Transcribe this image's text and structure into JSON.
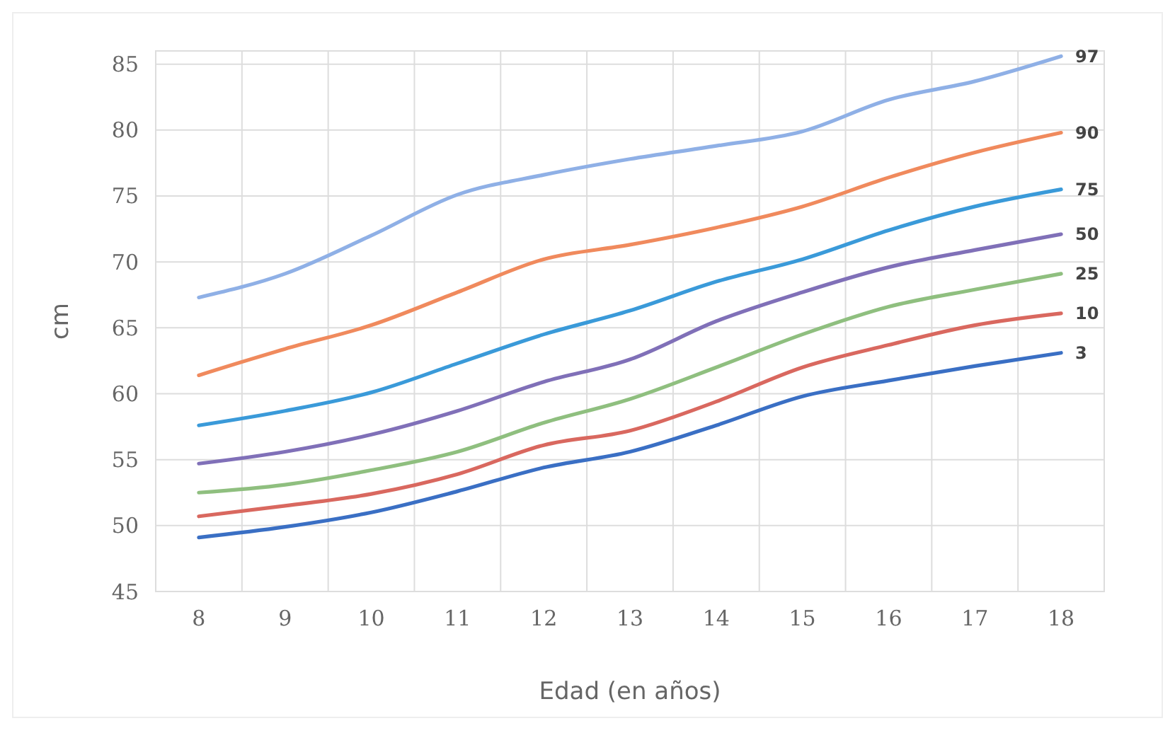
{
  "chart_data": {
    "type": "line",
    "xlabel": "Edad (en años)",
    "ylabel": "cm",
    "categories": [
      "8",
      "9",
      "10",
      "11",
      "12",
      "13",
      "14",
      "15",
      "16",
      "17",
      "18"
    ],
    "ylim": [
      45,
      86
    ],
    "yticks": [
      45,
      50,
      55,
      60,
      65,
      70,
      75,
      80,
      85
    ],
    "grid": true,
    "marker": "none",
    "line_style": "solid",
    "series": [
      {
        "name": "97",
        "color": "#8fb0e6",
        "values": [
          67.3,
          69.1,
          72.0,
          75.1,
          76.6,
          77.8,
          78.8,
          79.9,
          82.3,
          83.7,
          85.6
        ]
      },
      {
        "name": "90",
        "color": "#f08a5d",
        "values": [
          61.4,
          63.4,
          65.2,
          67.7,
          70.2,
          71.3,
          72.6,
          74.2,
          76.4,
          78.3,
          79.8
        ]
      },
      {
        "name": "75",
        "color": "#3a9ad9",
        "values": [
          57.6,
          58.7,
          60.1,
          62.3,
          64.5,
          66.3,
          68.5,
          70.2,
          72.4,
          74.2,
          75.5
        ]
      },
      {
        "name": "50",
        "color": "#8070b8",
        "values": [
          54.7,
          55.6,
          56.9,
          58.7,
          60.9,
          62.6,
          65.5,
          67.7,
          69.6,
          70.9,
          72.1
        ]
      },
      {
        "name": "25",
        "color": "#8fbf7f",
        "values": [
          52.5,
          53.1,
          54.2,
          55.6,
          57.8,
          59.6,
          62.0,
          64.5,
          66.6,
          67.9,
          69.1
        ]
      },
      {
        "name": "10",
        "color": "#d9685f",
        "values": [
          50.7,
          51.5,
          52.4,
          53.9,
          56.1,
          57.2,
          59.4,
          62.0,
          63.7,
          65.2,
          66.1
        ]
      },
      {
        "name": "3",
        "color": "#3a6fc4",
        "values": [
          49.1,
          49.9,
          51.0,
          52.6,
          54.4,
          55.6,
          57.6,
          59.8,
          61.0,
          62.1,
          63.1
        ]
      }
    ]
  }
}
